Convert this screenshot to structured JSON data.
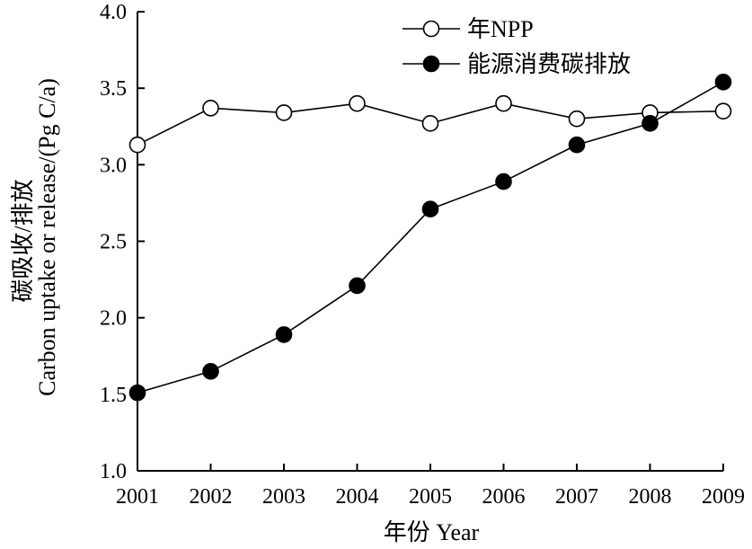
{
  "chart_data": {
    "type": "line",
    "title": "",
    "xlabel": "年份 Year",
    "ylabel_line1": "碳吸收/排放",
    "ylabel_line2": "Carbon uptake or release/(Pg C/a)",
    "categories": [
      "2001",
      "2002",
      "2003",
      "2004",
      "2005",
      "2006",
      "2007",
      "2008",
      "2009"
    ],
    "ylim": [
      1.0,
      4.0
    ],
    "yticks": [
      "1.0",
      "1.5",
      "2.0",
      "2.5",
      "3.0",
      "3.5",
      "4.0"
    ],
    "grid": false,
    "legend_position": "top-right",
    "series": [
      {
        "name": "年NPP",
        "marker": "open-circle",
        "values": [
          3.13,
          3.37,
          3.34,
          3.4,
          3.27,
          3.4,
          3.3,
          3.34,
          3.35
        ]
      },
      {
        "name": "能源消费碳排放",
        "marker": "filled-circle",
        "values": [
          1.51,
          1.65,
          1.89,
          2.21,
          2.71,
          2.89,
          3.13,
          3.27,
          3.54
        ]
      }
    ],
    "colors": {
      "line": "#000000",
      "marker_open_fill": "#ffffff",
      "marker_filled_fill": "#000000"
    }
  }
}
